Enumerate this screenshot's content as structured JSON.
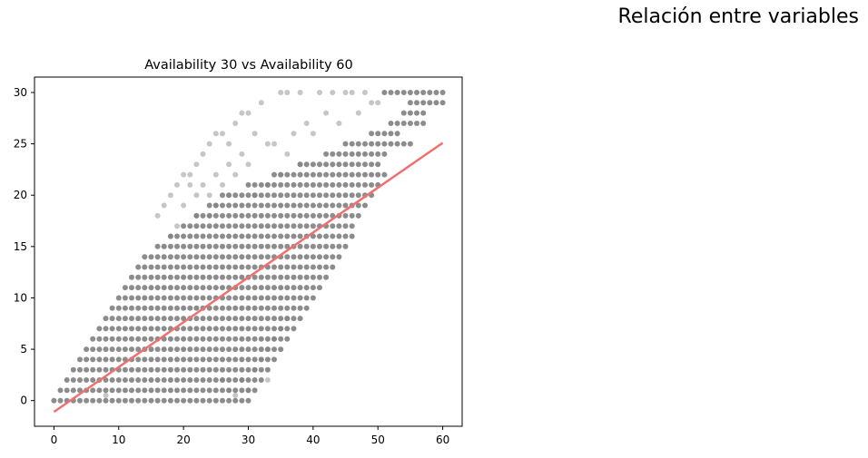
{
  "figure": {
    "suptitle": "Relación entre variables"
  },
  "chart_data": {
    "type": "scatter",
    "title": "Availability 30 vs Availability 60",
    "xlabel": "",
    "ylabel": "",
    "xlim": [
      -3,
      63
    ],
    "ylim": [
      -2.5,
      31.5
    ],
    "xticks": [
      0,
      10,
      20,
      30,
      40,
      50,
      60
    ],
    "yticks": [
      0,
      5,
      10,
      15,
      20,
      25,
      30
    ],
    "grid": false,
    "point_color": "#808080",
    "trendline": {
      "x": [
        0,
        60
      ],
      "y": [
        -1.1,
        25.1
      ],
      "color": "#f07070"
    },
    "dense_region": [
      {
        "y": 0,
        "x_min": 0,
        "x_max": 30
      },
      {
        "y": 1,
        "x_min": 1,
        "x_max": 31
      },
      {
        "y": 2,
        "x_min": 2,
        "x_max": 32
      },
      {
        "y": 3,
        "x_min": 3,
        "x_max": 33
      },
      {
        "y": 4,
        "x_min": 4,
        "x_max": 34
      },
      {
        "y": 5,
        "x_min": 5,
        "x_max": 35
      },
      {
        "y": 6,
        "x_min": 6,
        "x_max": 36
      },
      {
        "y": 7,
        "x_min": 7,
        "x_max": 37
      },
      {
        "y": 8,
        "x_min": 8,
        "x_max": 38
      },
      {
        "y": 9,
        "x_min": 9,
        "x_max": 39
      },
      {
        "y": 10,
        "x_min": 10,
        "x_max": 40
      },
      {
        "y": 11,
        "x_min": 11,
        "x_max": 41
      },
      {
        "y": 12,
        "x_min": 12,
        "x_max": 42
      },
      {
        "y": 13,
        "x_min": 13,
        "x_max": 43
      },
      {
        "y": 14,
        "x_min": 14,
        "x_max": 44
      },
      {
        "y": 15,
        "x_min": 16,
        "x_max": 45
      },
      {
        "y": 16,
        "x_min": 18,
        "x_max": 46
      },
      {
        "y": 17,
        "x_min": 20,
        "x_max": 46
      },
      {
        "y": 18,
        "x_min": 22,
        "x_max": 47
      },
      {
        "y": 19,
        "x_min": 24,
        "x_max": 48
      },
      {
        "y": 20,
        "x_min": 26,
        "x_max": 49
      },
      {
        "y": 21,
        "x_min": 30,
        "x_max": 50
      },
      {
        "y": 22,
        "x_min": 34,
        "x_max": 51
      },
      {
        "y": 23,
        "x_min": 38,
        "x_max": 50
      },
      {
        "y": 24,
        "x_min": 42,
        "x_max": 51
      },
      {
        "y": 25,
        "x_min": 45,
        "x_max": 55
      },
      {
        "y": 26,
        "x_min": 49,
        "x_max": 53
      },
      {
        "y": 27,
        "x_min": 52,
        "x_max": 57
      },
      {
        "y": 28,
        "x_min": 54,
        "x_max": 57
      },
      {
        "y": 29,
        "x_min": 55,
        "x_max": 60
      },
      {
        "y": 30,
        "x_min": 51,
        "x_max": 60
      }
    ],
    "sparse_points": [
      [
        8,
        0.5
      ],
      [
        16,
        18
      ],
      [
        17,
        19
      ],
      [
        18,
        20
      ],
      [
        19,
        21
      ],
      [
        20,
        22
      ],
      [
        21,
        22
      ],
      [
        22,
        23
      ],
      [
        23,
        24
      ],
      [
        24,
        25
      ],
      [
        25,
        26
      ],
      [
        26,
        26
      ],
      [
        28,
        27
      ],
      [
        29,
        28
      ],
      [
        30,
        28
      ],
      [
        32,
        29
      ],
      [
        35,
        30
      ],
      [
        36,
        30
      ],
      [
        38,
        30
      ],
      [
        41,
        30
      ],
      [
        43,
        30
      ],
      [
        45,
        30
      ],
      [
        46,
        30
      ],
      [
        48,
        30
      ],
      [
        21,
        21
      ],
      [
        22,
        20
      ],
      [
        27,
        25
      ],
      [
        31,
        26
      ],
      [
        33,
        25
      ],
      [
        36,
        24
      ],
      [
        38,
        23
      ],
      [
        40,
        26
      ],
      [
        44,
        27
      ],
      [
        47,
        28
      ],
      [
        49,
        29
      ],
      [
        50,
        29
      ],
      [
        42,
        28
      ],
      [
        39,
        27
      ],
      [
        37,
        26
      ],
      [
        34,
        25
      ],
      [
        29,
        24
      ],
      [
        27,
        23
      ],
      [
        25,
        22
      ],
      [
        23,
        21
      ],
      [
        31,
        20
      ],
      [
        33,
        21
      ],
      [
        35,
        22
      ],
      [
        30,
        23
      ],
      [
        28,
        22
      ],
      [
        26,
        21
      ],
      [
        24,
        20
      ],
      [
        20,
        19
      ],
      [
        19,
        17
      ],
      [
        18,
        16
      ],
      [
        17,
        15
      ],
      [
        22,
        18
      ],
      [
        24,
        18
      ],
      [
        25,
        19
      ],
      [
        27,
        20
      ],
      [
        31,
        3
      ],
      [
        32,
        4
      ],
      [
        33,
        5
      ],
      [
        34,
        6
      ],
      [
        35,
        7
      ],
      [
        36,
        8
      ],
      [
        30,
        1
      ],
      [
        29,
        2
      ],
      [
        28,
        0.5
      ],
      [
        27,
        1
      ],
      [
        26,
        2
      ],
      [
        33,
        2
      ]
    ]
  }
}
